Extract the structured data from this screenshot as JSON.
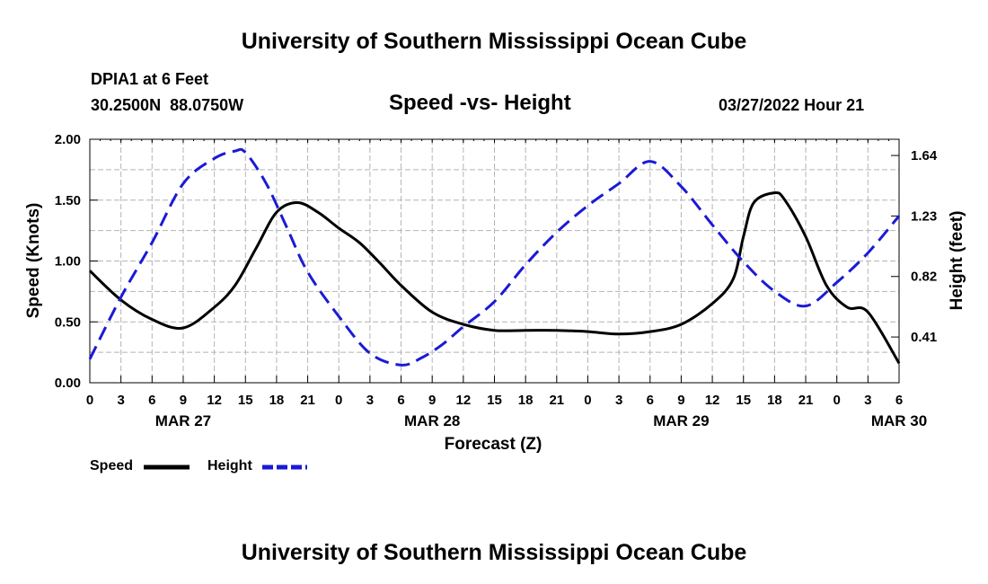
{
  "header": {
    "title": "University of Southern Mississippi Ocean Cube",
    "station": "DPIA1 at 6 Feet",
    "coords": "30.2500N  88.0750W",
    "timestamp": "03/27/2022 Hour 21"
  },
  "footer": {
    "title": "University of Southern Mississippi Ocean Cube"
  },
  "legend": {
    "speed_label": "Speed",
    "height_label": "Height",
    "colors": {
      "speed": "#000000",
      "height": "#1a1ad6"
    }
  },
  "chart_data": {
    "type": "line",
    "title": "Speed -vs- Height",
    "xlabel": "Forecast (Z)",
    "ylabel": "Speed (Knots)",
    "y2label": "Height (feet)",
    "x_unit": "hours from MAR 27 00Z",
    "xlim": [
      0,
      78
    ],
    "ylim": [
      0,
      2.0
    ],
    "y2lim": [
      0.1,
      1.75
    ],
    "x_tick_values": [
      0,
      3,
      6,
      9,
      12,
      15,
      18,
      21,
      24,
      27,
      30,
      33,
      36,
      39,
      42,
      45,
      48,
      51,
      54,
      57,
      60,
      63,
      66,
      69,
      72,
      75,
      78
    ],
    "x_tick_labels": [
      "0",
      "3",
      "6",
      "9",
      "12",
      "15",
      "18",
      "21",
      "0",
      "3",
      "6",
      "9",
      "12",
      "15",
      "18",
      "21",
      "0",
      "3",
      "6",
      "9",
      "12",
      "15",
      "18",
      "21",
      "0",
      "3",
      "6"
    ],
    "date_labels": [
      {
        "x": 9,
        "label": "MAR 27"
      },
      {
        "x": 33,
        "label": "MAR 28"
      },
      {
        "x": 57,
        "label": "MAR 29"
      },
      {
        "x": 78,
        "label": "MAR 30"
      }
    ],
    "y_ticks": [
      0.0,
      0.5,
      1.0,
      1.5,
      2.0
    ],
    "y_tick_labels": [
      "0.00",
      "0.50",
      "1.00",
      "1.50",
      "2.00"
    ],
    "y2_ticks": [
      0.41,
      0.82,
      1.23,
      1.64
    ],
    "y2_tick_labels": [
      "0.41",
      "0.82",
      "1.23",
      "1.64"
    ],
    "series": [
      {
        "name": "Speed",
        "axis": "left",
        "style": "solid",
        "color": "#000000",
        "x": [
          0,
          3,
          6,
          9,
          12,
          14,
          16,
          18,
          20,
          22,
          24,
          26,
          28,
          30,
          33,
          36,
          39,
          42,
          45,
          48,
          51,
          54,
          57,
          60,
          62,
          63,
          64,
          66,
          67,
          69,
          71,
          73,
          75,
          78
        ],
        "y": [
          0.92,
          0.68,
          0.52,
          0.45,
          0.62,
          0.8,
          1.1,
          1.4,
          1.48,
          1.4,
          1.27,
          1.15,
          0.98,
          0.8,
          0.58,
          0.48,
          0.43,
          0.43,
          0.43,
          0.42,
          0.4,
          0.42,
          0.48,
          0.65,
          0.85,
          1.2,
          1.48,
          1.56,
          1.5,
          1.2,
          0.8,
          0.62,
          0.58,
          0.16
        ]
      },
      {
        "name": "Height",
        "axis": "right",
        "style": "dashed",
        "color": "#1a1ad6",
        "x": [
          0,
          3,
          6,
          9,
          12,
          14,
          15,
          17,
          19,
          21,
          24,
          27,
          30,
          32,
          34,
          36,
          39,
          42,
          45,
          48,
          51,
          54,
          57,
          60,
          63,
          66,
          69,
          72,
          75,
          78
        ],
        "y": [
          0.26,
          0.68,
          1.05,
          1.45,
          1.62,
          1.67,
          1.66,
          1.45,
          1.15,
          0.85,
          0.55,
          0.3,
          0.22,
          0.27,
          0.36,
          0.48,
          0.65,
          0.9,
          1.12,
          1.3,
          1.45,
          1.6,
          1.43,
          1.17,
          0.92,
          0.72,
          0.62,
          0.78,
          0.98,
          1.23
        ]
      }
    ]
  }
}
